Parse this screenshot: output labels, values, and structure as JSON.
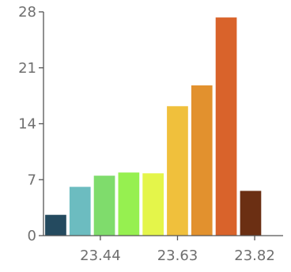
{
  "chart_data": {
    "type": "bar",
    "title": "",
    "xlabel": "",
    "ylabel": "",
    "ylim": [
      0,
      28
    ],
    "yticks": [
      0,
      7,
      14,
      21,
      28
    ],
    "ytick_labels": [
      "0",
      "7",
      "14",
      "21",
      "28"
    ],
    "xlim": [
      23.3,
      23.89
    ],
    "xticks": [
      23.44,
      23.63,
      23.82
    ],
    "xtick_labels": [
      "23.44",
      "23.63",
      "23.82"
    ],
    "bin_width": 0.06,
    "bins": [
      {
        "x": 23.33,
        "value": 2.6,
        "color": "#244a5f"
      },
      {
        "x": 23.39,
        "value": 6.1,
        "color": "#6cbcc0"
      },
      {
        "x": 23.45,
        "value": 7.5,
        "color": "#7fdc6c"
      },
      {
        "x": 23.51,
        "value": 7.9,
        "color": "#96f050"
      },
      {
        "x": 23.57,
        "value": 7.8,
        "color": "#e4f54a"
      },
      {
        "x": 23.63,
        "value": 16.2,
        "color": "#f0c03c"
      },
      {
        "x": 23.69,
        "value": 18.8,
        "color": "#e2912e"
      },
      {
        "x": 23.75,
        "value": 27.3,
        "color": "#d9632b"
      },
      {
        "x": 23.81,
        "value": 5.6,
        "color": "#6b2f13"
      }
    ],
    "grid": false,
    "legend": "none"
  }
}
